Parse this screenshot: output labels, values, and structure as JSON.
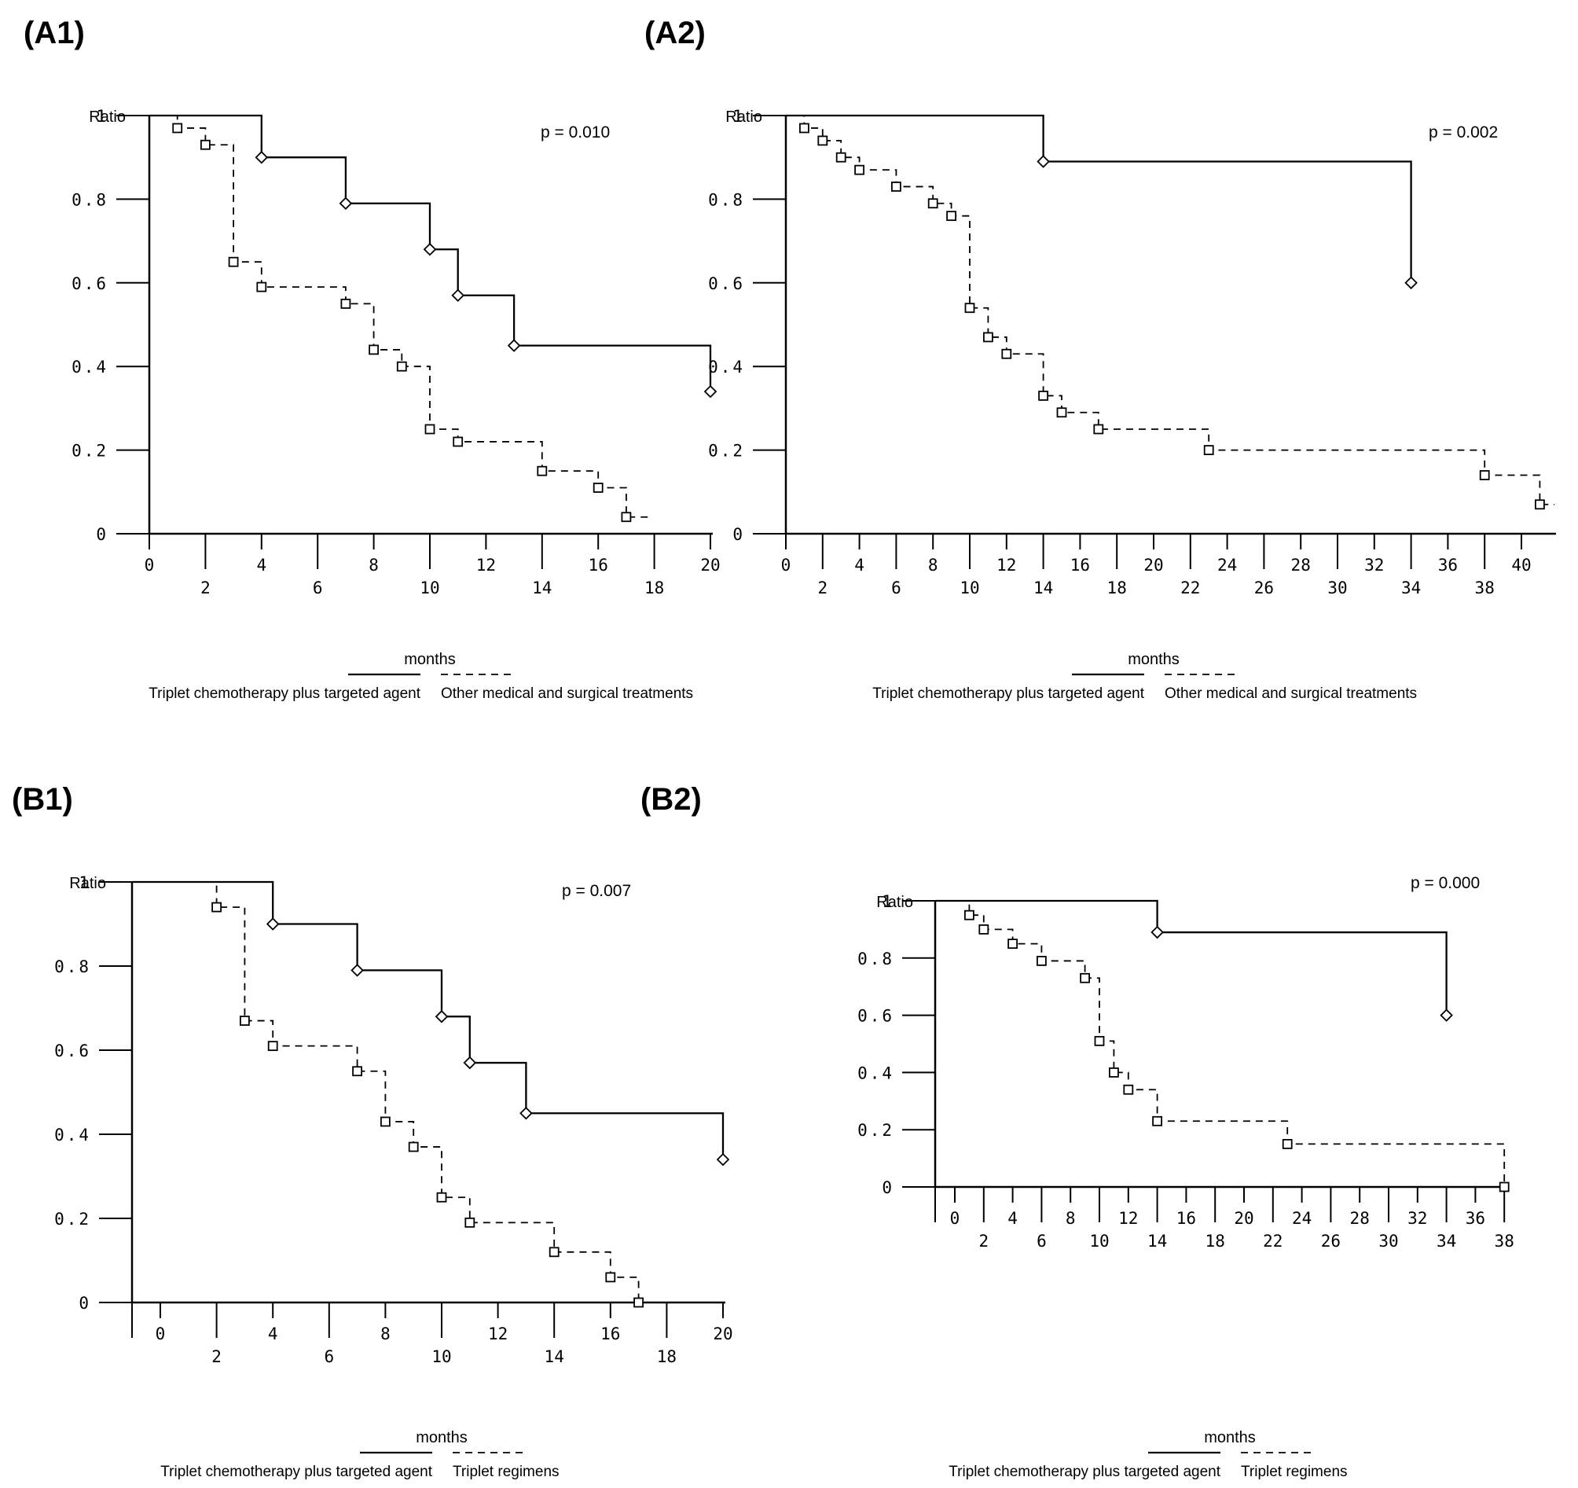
{
  "figure": {
    "background_color": "#ffffff",
    "ink_color": "#000000",
    "description": "Four Kaplan-Meier survival plots comparing treatment groups"
  },
  "panels": [
    {
      "title": "(A1)",
      "ylabel": "Ratio",
      "xlabel": "months",
      "p_label": "p = 0.010",
      "legend_solid": "Triplet chemotherapy plus targeted agent",
      "legend_dashed": "Other medical and surgical treatments"
    },
    {
      "title": "(A2)",
      "ylabel": "Ratio",
      "xlabel": "months",
      "p_label": "p = 0.002",
      "legend_solid": "Triplet chemotherapy plus targeted agent",
      "legend_dashed": "Other medical and surgical treatments"
    },
    {
      "title": "(B1)",
      "ylabel": "Ratio",
      "xlabel": "months",
      "p_label": "p = 0.007",
      "legend_solid": "Triplet chemotherapy plus targeted agent",
      "legend_dashed": "Triplet regimens"
    },
    {
      "title": "(B2)",
      "ylabel": "Ratio",
      "xlabel": "months",
      "p_label": "p = 0.000",
      "legend_solid": "Triplet chemotherapy plus targeted agent",
      "legend_dashed": "Triplet regimens"
    }
  ],
  "chart_data": [
    {
      "type": "line",
      "subtype": "kaplan-meier-step",
      "title": "(A1)",
      "xlabel": "months",
      "ylabel": "Ratio",
      "p_value": "p = 0.010",
      "xlim": [
        0,
        20
      ],
      "ylim": [
        0,
        1
      ],
      "x_ticks": [
        0,
        2,
        4,
        6,
        8,
        10,
        12,
        14,
        16,
        18,
        20
      ],
      "y_ticks": [
        "0",
        "0.2",
        "0.4",
        "0.6",
        "0.8",
        "1"
      ],
      "grid": false,
      "legend_position": "below",
      "series": [
        {
          "name": "Triplet chemotherapy plus targeted agent",
          "style": "solid",
          "marker": "diamond",
          "start": 0,
          "points": [
            [
              4,
              0.9
            ],
            [
              7,
              0.79
            ],
            [
              10,
              0.68
            ],
            [
              11,
              0.57
            ],
            [
              13,
              0.45
            ],
            [
              20,
              0.34
            ]
          ],
          "tail": null
        },
        {
          "name": "Other medical and surgical treatments",
          "style": "dashed",
          "marker": "square",
          "start": 0,
          "points": [
            [
              1,
              0.97
            ],
            [
              2,
              0.93
            ],
            [
              3,
              0.65
            ],
            [
              4,
              0.59
            ],
            [
              7,
              0.55
            ],
            [
              8,
              0.44
            ],
            [
              9,
              0.4
            ],
            [
              10,
              0.25
            ],
            [
              11,
              0.22
            ],
            [
              14,
              0.15
            ],
            [
              16,
              0.11
            ],
            [
              17,
              0.04
            ]
          ],
          "tail": 17.8
        }
      ]
    },
    {
      "type": "line",
      "subtype": "kaplan-meier-step",
      "title": "(A2)",
      "xlabel": "months",
      "ylabel": "Ratio",
      "p_value": "p = 0.002",
      "xlim": [
        0,
        41.8
      ],
      "ylim": [
        0,
        1
      ],
      "x_ticks": [
        0,
        2,
        4,
        6,
        8,
        10,
        12,
        14,
        16,
        18,
        20,
        22,
        24,
        26,
        28,
        30,
        32,
        34,
        36,
        38,
        40
      ],
      "y_ticks": [
        "0",
        "0.2",
        "0.4",
        "0.6",
        "0.8",
        "1"
      ],
      "grid": false,
      "legend_position": "below",
      "series": [
        {
          "name": "Triplet chemotherapy plus targeted agent",
          "style": "solid",
          "marker": "diamond",
          "start": 0,
          "points": [
            [
              14,
              0.89
            ],
            [
              34,
              0.6
            ]
          ],
          "tail": null
        },
        {
          "name": "Other medical and surgical treatments",
          "style": "dashed",
          "marker": "square",
          "start": 0,
          "points": [
            [
              1,
              0.97
            ],
            [
              2,
              0.94
            ],
            [
              3,
              0.9
            ],
            [
              4,
              0.87
            ],
            [
              6,
              0.83
            ],
            [
              8,
              0.79
            ],
            [
              9,
              0.76
            ],
            [
              10,
              0.54
            ],
            [
              11,
              0.47
            ],
            [
              12,
              0.43
            ],
            [
              14,
              0.33
            ],
            [
              15,
              0.29
            ],
            [
              17,
              0.25
            ],
            [
              23,
              0.2
            ],
            [
              38,
              0.14
            ],
            [
              41,
              0.07
            ]
          ],
          "tail": 41.8
        }
      ]
    },
    {
      "type": "line",
      "subtype": "kaplan-meier-step",
      "title": "(B1)",
      "xlabel": "months",
      "ylabel": "Ratio",
      "p_value": "p = 0.007",
      "xlim": [
        0,
        20
      ],
      "ylim": [
        0,
        1
      ],
      "x_ticks": [
        0,
        2,
        4,
        6,
        8,
        10,
        12,
        14,
        16,
        18,
        20
      ],
      "y_ticks": [
        "0",
        "0.2",
        "0.4",
        "0.6",
        "0.8",
        "1"
      ],
      "grid": false,
      "legend_position": "below",
      "series": [
        {
          "name": "Triplet chemotherapy plus targeted agent",
          "style": "solid",
          "marker": "diamond",
          "start": -1,
          "points": [
            [
              4,
              0.9
            ],
            [
              7,
              0.79
            ],
            [
              10,
              0.68
            ],
            [
              11,
              0.57
            ],
            [
              13,
              0.45
            ],
            [
              20,
              0.34
            ]
          ],
          "tail": null
        },
        {
          "name": "Triplet regimens",
          "style": "dashed",
          "marker": "square",
          "start": -1,
          "points": [
            [
              2,
              0.94
            ],
            [
              3,
              0.67
            ],
            [
              4,
              0.61
            ],
            [
              7,
              0.55
            ],
            [
              8,
              0.43
            ],
            [
              9,
              0.37
            ],
            [
              10,
              0.25
            ],
            [
              11,
              0.19
            ],
            [
              14,
              0.12
            ],
            [
              16,
              0.06
            ],
            [
              17,
              0.0
            ]
          ],
          "tail": null
        }
      ]
    },
    {
      "type": "line",
      "subtype": "kaplan-meier-step",
      "title": "(B2)",
      "xlabel": "months",
      "ylabel": "Ratio",
      "p_value": "p = 0.000",
      "xlim": [
        0,
        38
      ],
      "ylim": [
        0,
        1
      ],
      "x_ticks": [
        0,
        2,
        4,
        6,
        8,
        10,
        12,
        14,
        16,
        18,
        20,
        22,
        24,
        26,
        28,
        30,
        32,
        34,
        36,
        38
      ],
      "y_ticks": [
        "0",
        "0.2",
        "0.4",
        "0.6",
        "0.8",
        "1"
      ],
      "grid": false,
      "legend_position": "below",
      "series": [
        {
          "name": "Triplet chemotherapy plus targeted agent",
          "style": "solid",
          "marker": "diamond",
          "start": -1.35,
          "points": [
            [
              14,
              0.89
            ],
            [
              34,
              0.6
            ]
          ],
          "tail": null
        },
        {
          "name": "Triplet regimens",
          "style": "dashed",
          "marker": "square",
          "start": -1.35,
          "points": [
            [
              1,
              0.95
            ],
            [
              2,
              0.9
            ],
            [
              4,
              0.85
            ],
            [
              6,
              0.79
            ],
            [
              9,
              0.73
            ],
            [
              10,
              0.51
            ],
            [
              11,
              0.4
            ],
            [
              12,
              0.34
            ],
            [
              14,
              0.23
            ],
            [
              23,
              0.15
            ],
            [
              38,
              0.0
            ]
          ],
          "tail": null
        }
      ]
    }
  ]
}
